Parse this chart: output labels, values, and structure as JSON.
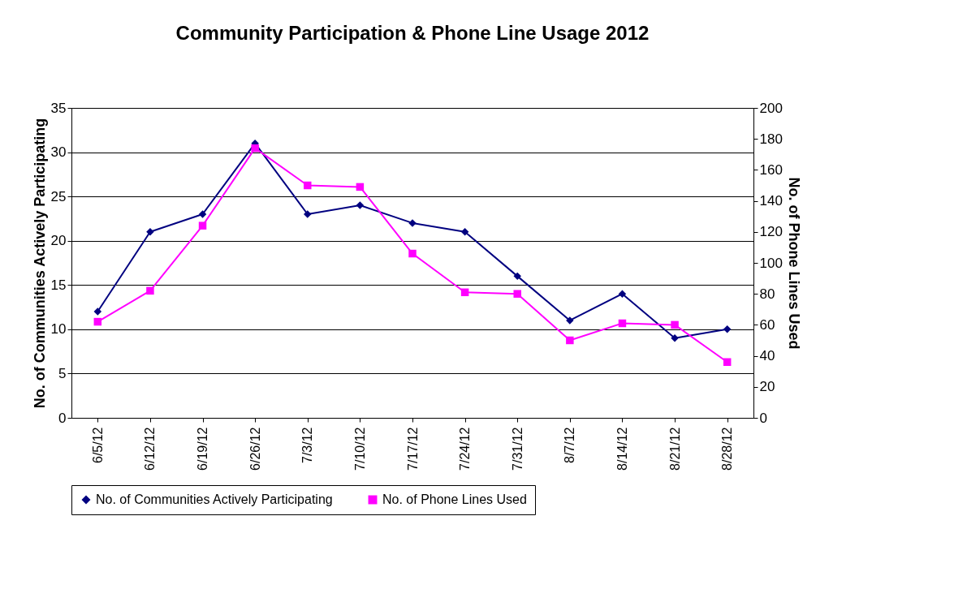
{
  "chart_data": {
    "type": "line",
    "title": "Community Participation & Phone Line Usage 2012",
    "categories": [
      "6/5/12",
      "6/12/12",
      "6/19/12",
      "6/26/12",
      "7/3/12",
      "7/10/12",
      "7/17/12",
      "7/24/12",
      "7/31/12",
      "8/7/12",
      "8/14/12",
      "8/21/12",
      "8/28/12"
    ],
    "series": [
      {
        "name": "No. of Communities Actively Participating",
        "color": "#000080",
        "marker": "diamond",
        "values": [
          12,
          21,
          23,
          31,
          23,
          24,
          22,
          21,
          16,
          11,
          14,
          9,
          10
        ]
      },
      {
        "name": "No. of Phone Lines Used",
        "color": "#ff00ff",
        "marker": "square",
        "axis": "y2",
        "values": [
          62,
          82,
          124,
          174,
          150,
          149,
          106,
          81,
          80,
          50,
          61,
          60,
          36
        ]
      }
    ],
    "ylabel": "No. of Communities Actively Participating",
    "y2label": "No. of Phone Lines Used",
    "ylim": [
      0,
      35
    ],
    "yticks": [
      0,
      5,
      10,
      15,
      20,
      25,
      30,
      35
    ],
    "y2lim": [
      0,
      200
    ],
    "y2ticks": [
      0,
      20,
      40,
      60,
      80,
      100,
      120,
      140,
      160,
      180,
      200
    ],
    "grid": "y",
    "legend": "bottom",
    "line_style": "solid"
  }
}
